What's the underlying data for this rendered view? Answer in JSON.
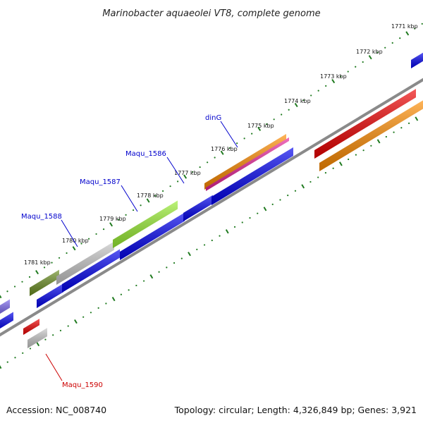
{
  "title": "Marinobacter aquaeolei VT8, complete genome",
  "footer": {
    "accession": "Accession: NC_008740",
    "summary": "Topology: circular; Length: 4,326,849 bp; Genes: 3,921"
  },
  "colors": {
    "backbone": "#888888",
    "tick": "#1f7a1f",
    "blue": "#0000ee",
    "red": "#ee0000",
    "orange": "#ff8c00",
    "pink": "#e8259a",
    "lime": "#99ee33",
    "olive": "#6b8e23",
    "gray": "#c8c8c8",
    "purple": "#7b68ee",
    "label_blue": "#0000cc",
    "label_red": "#cc0000"
  },
  "kbp_markers": [
    "1771 kbp",
    "1772 kbp",
    "1773 kbp",
    "1774 kbp",
    "1775 kbp",
    "1776 kbp",
    "1777 kbp",
    "1778 kbp",
    "1779 kbp",
    "1780 kbp",
    "1781 kbp"
  ],
  "gene_labels": [
    {
      "id": "dinG",
      "text": "dinG",
      "color": "label_blue"
    },
    {
      "id": "maqu-1586",
      "text": "Maqu_1586",
      "color": "label_blue"
    },
    {
      "id": "maqu-1587",
      "text": "Maqu_1587",
      "color": "label_blue"
    },
    {
      "id": "maqu-1588",
      "text": "Maqu_1588",
      "color": "label_blue"
    },
    {
      "id": "maqu-1590",
      "text": "Maqu_1590",
      "color": "label_red"
    }
  ]
}
